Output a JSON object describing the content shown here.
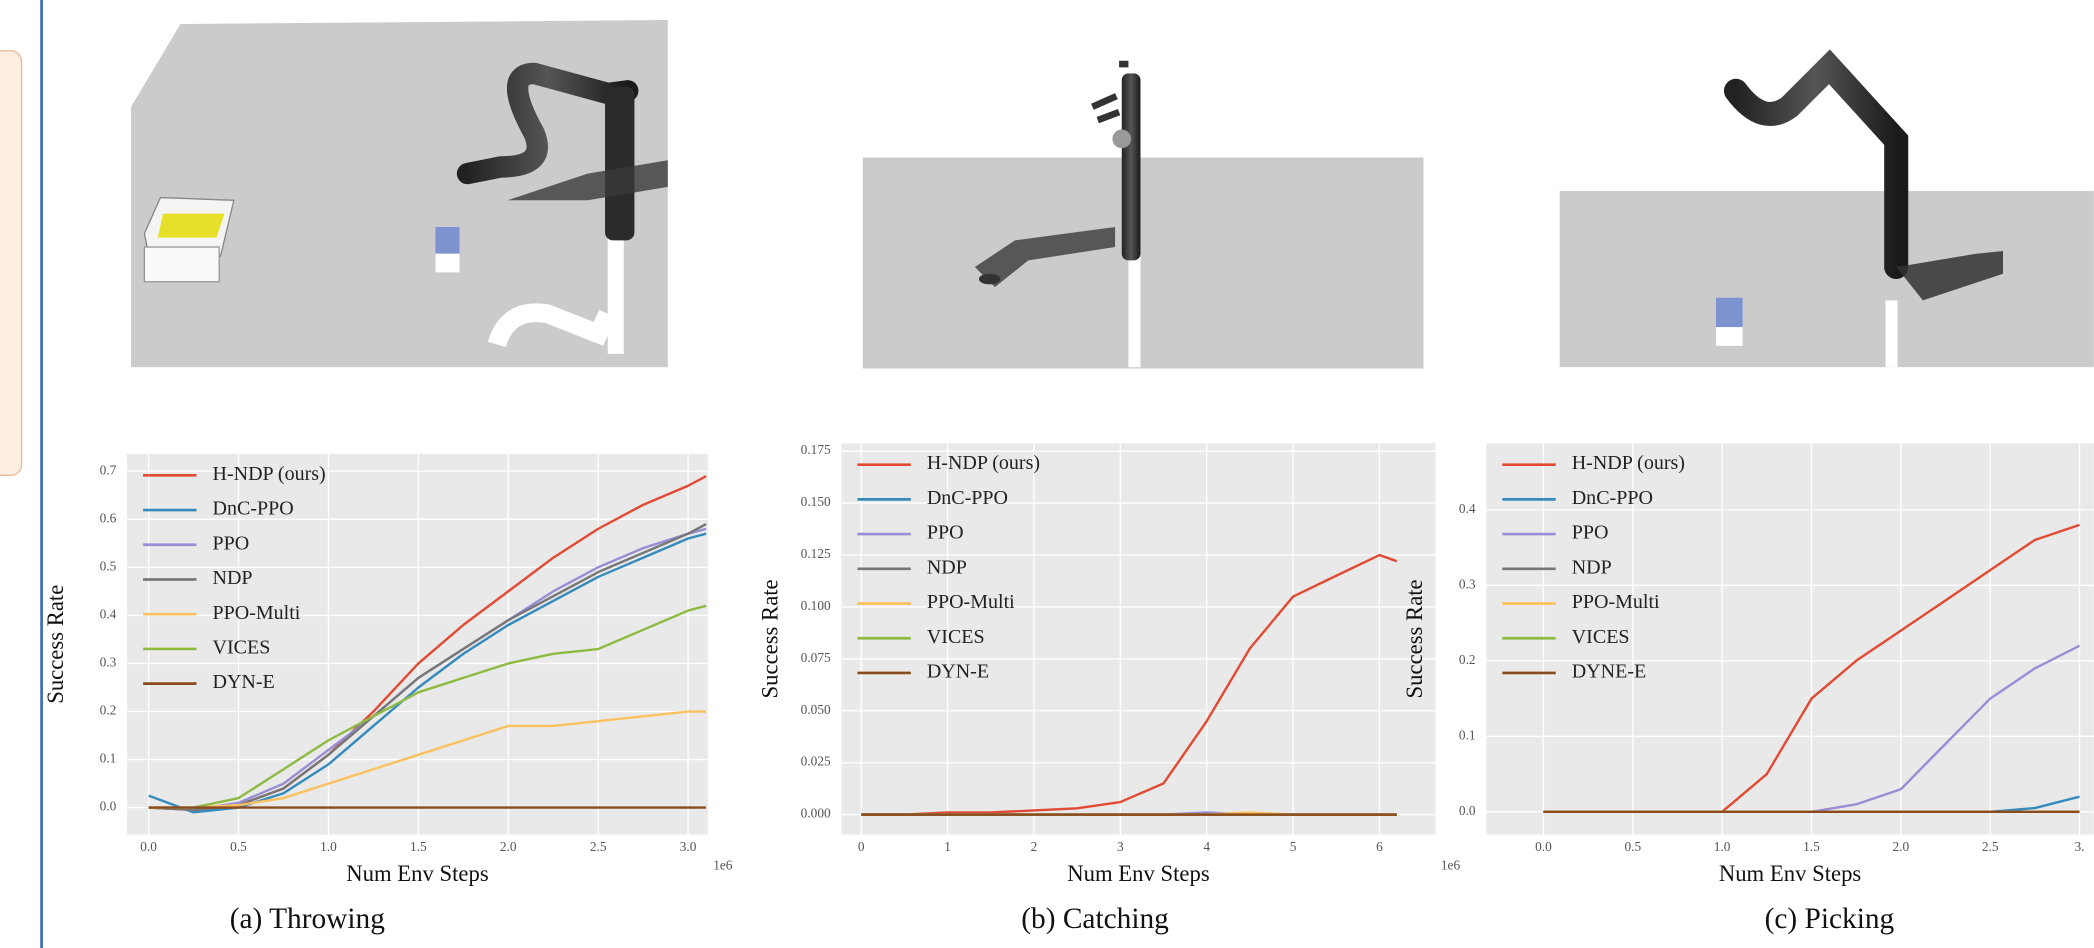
{
  "chart_data": [
    {
      "type": "line",
      "caption": "(a) Throwing",
      "xlabel": "Num Env Steps",
      "ylabel": "Success Rate",
      "offset_text": "1e6",
      "grid": true,
      "legend": "upper left",
      "x": [
        0,
        0.25,
        0.5,
        0.75,
        1.0,
        1.25,
        1.5,
        1.75,
        2.0,
        2.25,
        2.5,
        2.75,
        3.0,
        3.1
      ],
      "xlim": [
        -0.12,
        3.11
      ],
      "ylim": [
        -0.056,
        0.736
      ],
      "xticks": [
        {
          "value": 0,
          "label": "0.0"
        },
        0.5,
        {
          "value": 1,
          "label": "1.0"
        },
        1.5,
        {
          "value": 2,
          "label": "2.0"
        },
        2.5,
        {
          "value": 3,
          "label": "3.0"
        }
      ],
      "yticks": [
        {
          "value": 0,
          "label": "0.0"
        },
        0.1,
        0.2,
        0.3,
        0.4,
        0.5,
        0.6,
        0.7
      ],
      "series": [
        {
          "name": "H-NDP (ours)",
          "color": "#e24a33",
          "values": [
            0,
            -0.005,
            0.005,
            0.04,
            0.11,
            0.2,
            0.3,
            0.38,
            0.45,
            0.52,
            0.58,
            0.63,
            0.67,
            0.69
          ]
        },
        {
          "name": "DnC-PPO",
          "color": "#348abd",
          "values": [
            0.025,
            -0.01,
            0.0,
            0.03,
            0.09,
            0.17,
            0.25,
            0.32,
            0.38,
            0.43,
            0.48,
            0.52,
            0.56,
            0.57
          ]
        },
        {
          "name": "PPO",
          "color": "#988ed5",
          "values": [
            0,
            -0.005,
            0.01,
            0.05,
            0.12,
            0.19,
            0.27,
            0.33,
            0.39,
            0.45,
            0.5,
            0.54,
            0.57,
            0.58
          ]
        },
        {
          "name": "NDP",
          "color": "#777777",
          "values": [
            0,
            -0.005,
            0.005,
            0.04,
            0.11,
            0.19,
            0.27,
            0.33,
            0.39,
            0.44,
            0.49,
            0.53,
            0.57,
            0.59
          ]
        },
        {
          "name": "PPO-Multi",
          "color": "#fbc15e",
          "values": [
            0,
            0,
            0.005,
            0.02,
            0.05,
            0.08,
            0.11,
            0.14,
            0.17,
            0.17,
            0.18,
            0.19,
            0.2,
            0.2
          ]
        },
        {
          "name": "VICES",
          "color": "#8eba42",
          "values": [
            0,
            0,
            0.02,
            0.08,
            0.14,
            0.19,
            0.24,
            0.27,
            0.3,
            0.32,
            0.33,
            0.37,
            0.41,
            0.42
          ]
        },
        {
          "name": "DYN-E",
          "color": "#8c4b1f",
          "values": [
            0,
            0,
            0,
            0,
            0,
            0,
            0,
            0,
            0,
            0,
            0,
            0,
            0,
            0
          ]
        }
      ]
    },
    {
      "type": "line",
      "caption": "(b) Catching",
      "xlabel": "Num Env Steps",
      "ylabel": "Success Rate",
      "offset_text": "1e6",
      "grid": true,
      "legend": "upper left",
      "x": [
        0,
        0.5,
        1,
        1.5,
        2,
        2.5,
        3,
        3.5,
        4,
        4.5,
        5,
        5.5,
        6,
        6.2
      ],
      "xlim": [
        -0.23,
        6.65
      ],
      "ylim": [
        -0.0096,
        0.1788
      ],
      "xticks": [
        0,
        1,
        2,
        3,
        4,
        5,
        6
      ],
      "yticks": [
        {
          "value": 0,
          "label": "0.000"
        },
        {
          "value": 0.025,
          "label": "0.025"
        },
        {
          "value": 0.05,
          "label": "0.050"
        },
        {
          "value": 0.075,
          "label": "0.075"
        },
        {
          "value": 0.1,
          "label": "0.100"
        },
        {
          "value": 0.125,
          "label": "0.125"
        },
        {
          "value": 0.15,
          "label": "0.150"
        },
        {
          "value": 0.175,
          "label": "0.175"
        }
      ],
      "series": [
        {
          "name": "H-NDP (ours)",
          "color": "#e24a33",
          "values": [
            0,
            0,
            0.001,
            0.001,
            0.002,
            0.003,
            0.006,
            0.015,
            0.045,
            0.08,
            0.105,
            0.115,
            0.125,
            0.122
          ]
        },
        {
          "name": "DnC-PPO",
          "color": "#348abd",
          "values": [
            0,
            0,
            0,
            0,
            0,
            0,
            0,
            0,
            0,
            0,
            0,
            0,
            0,
            0
          ]
        },
        {
          "name": "PPO",
          "color": "#988ed5",
          "values": [
            0,
            0,
            0,
            0,
            0,
            0,
            0,
            0,
            0.001,
            0,
            0,
            0,
            0,
            0
          ]
        },
        {
          "name": "NDP",
          "color": "#777777",
          "values": [
            0,
            0,
            0,
            0,
            0,
            0,
            0,
            0,
            0,
            0,
            0,
            0,
            0,
            0
          ]
        },
        {
          "name": "PPO-Multi",
          "color": "#fbc15e",
          "values": [
            0,
            0,
            0,
            0,
            0,
            0,
            0,
            0,
            0,
            0.001,
            0,
            0,
            0,
            0
          ]
        },
        {
          "name": "VICES",
          "color": "#8eba42",
          "values": [
            0,
            0,
            0,
            0,
            0,
            0,
            0,
            0,
            0,
            0,
            0,
            0,
            0,
            0
          ]
        },
        {
          "name": "DYN-E",
          "color": "#8c4b1f",
          "values": [
            0,
            0,
            0,
            0,
            0,
            0,
            0,
            0,
            0,
            0,
            0,
            0,
            0,
            0
          ]
        }
      ]
    },
    {
      "type": "line",
      "caption": "(c) Picking",
      "xlabel": "Num Env Steps",
      "ylabel": "Success Rate",
      "grid": true,
      "legend": "upper left",
      "x": [
        0,
        0.25,
        0.5,
        0.75,
        1.0,
        1.25,
        1.5,
        1.75,
        2.0,
        2.25,
        2.5,
        2.75,
        3.0
      ],
      "xlim": [
        -0.32,
        3.08
      ],
      "ylim": [
        -0.03,
        0.488
      ],
      "xticks": [
        {
          "value": 0,
          "label": "0.0"
        },
        0.5,
        {
          "value": 1,
          "label": "1.0"
        },
        1.5,
        {
          "value": 2,
          "label": "2.0"
        },
        2.5,
        {
          "value": 3,
          "label": "3."
        }
      ],
      "yticks": [
        {
          "value": 0,
          "label": "0.0"
        },
        0.1,
        0.2,
        0.3,
        0.4
      ],
      "series": [
        {
          "name": "H-NDP (ours)",
          "color": "#e24a33",
          "values": [
            0,
            0,
            0,
            0,
            0,
            0.05,
            0.15,
            0.2,
            0.24,
            0.28,
            0.32,
            0.36,
            0.38
          ]
        },
        {
          "name": "DnC-PPO",
          "color": "#348abd",
          "values": [
            0,
            0,
            0,
            0,
            0,
            0,
            0,
            0,
            0,
            0,
            0,
            0.005,
            0.02
          ]
        },
        {
          "name": "PPO",
          "color": "#988ed5",
          "values": [
            0,
            0,
            0,
            0,
            0,
            0,
            0,
            0.01,
            0.03,
            0.09,
            0.15,
            0.19,
            0.22
          ]
        },
        {
          "name": "NDP",
          "color": "#777777",
          "values": [
            0,
            0,
            0,
            0,
            0,
            0,
            0,
            0,
            0,
            0,
            0,
            0,
            0
          ]
        },
        {
          "name": "PPO-Multi",
          "color": "#fbc15e",
          "values": [
            0,
            0,
            0,
            0,
            0,
            0,
            0,
            0,
            0,
            0,
            0,
            0,
            0
          ]
        },
        {
          "name": "VICES",
          "color": "#8eba42",
          "values": [
            0,
            0,
            0,
            0,
            0,
            0,
            0,
            0,
            0,
            0,
            0,
            0,
            0
          ]
        },
        {
          "name": "DYNE-E",
          "color": "#8c4b1f",
          "values": [
            0,
            0,
            0,
            0,
            0,
            0,
            0,
            0,
            0,
            0,
            0,
            0,
            0
          ]
        }
      ]
    }
  ]
}
